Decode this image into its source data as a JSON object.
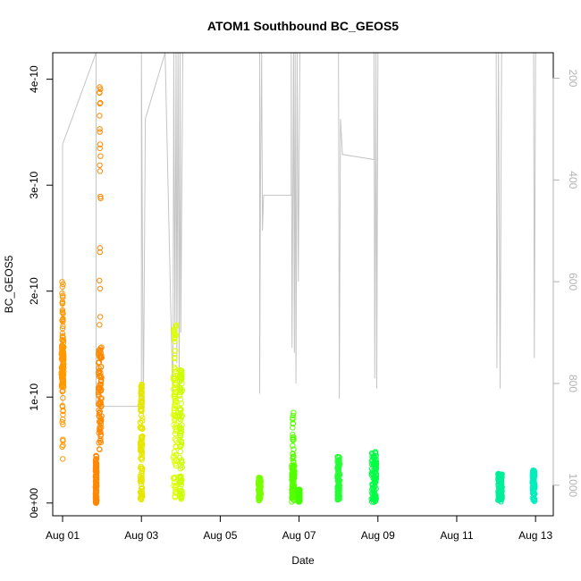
{
  "chart_data": {
    "type": "scatter",
    "title": "ATOM1 Southbound BC_GEOS5",
    "xlabel": "Date",
    "ylabel": "BC_GEOS5",
    "x_unit": "days",
    "xlim": [
      0.75,
      13.45
    ],
    "ylim": [
      -1.2e-11,
      4.25e-10
    ],
    "x_ticks": [
      {
        "value": 1,
        "label": "Aug 01"
      },
      {
        "value": 3,
        "label": "Aug 03"
      },
      {
        "value": 5,
        "label": "Aug 05"
      },
      {
        "value": 7,
        "label": "Aug 07"
      },
      {
        "value": 9,
        "label": "Aug 09"
      },
      {
        "value": 11,
        "label": "Aug 11"
      },
      {
        "value": 13,
        "label": "Aug 13"
      }
    ],
    "y_ticks": [
      {
        "value": 0,
        "label": "0e+00"
      },
      {
        "value": 1e-10,
        "label": "1e-10"
      },
      {
        "value": 2e-10,
        "label": "2e-10"
      },
      {
        "value": 3e-10,
        "label": "3e-10"
      },
      {
        "value": 4e-10,
        "label": "4e-10"
      }
    ],
    "y2_ticks": [
      {
        "value": 200,
        "label": "200"
      },
      {
        "value": 400,
        "label": "400"
      },
      {
        "value": 600,
        "label": "600"
      },
      {
        "value": 800,
        "label": "800"
      },
      {
        "value": 1000,
        "label": "1000"
      }
    ],
    "y2lim": [
      1060,
      150
    ],
    "grid": false,
    "marker": "open-circle",
    "point_groups": [
      {
        "x": 1.0,
        "x_spread": 0.06,
        "y_min": 1.05e-10,
        "y_max": 1.58e-10,
        "sparse_to": 2.1e-10,
        "sparse_from": 4e-11,
        "color": "#ff9900"
      },
      {
        "x": 1.85,
        "x_spread": 0.03,
        "y_min": 1e-12,
        "y_max": 4.5e-11,
        "sparse_to": 0,
        "sparse_from": 0,
        "color": "#ff8800"
      },
      {
        "x": 1.95,
        "x_spread": 0.08,
        "y_min": 5e-11,
        "y_max": 1.48e-10,
        "sparse_to": 4.07e-10,
        "sparse_from": 5e-11,
        "color": "#ff8800"
      },
      {
        "x": 3.0,
        "x_spread": 0.06,
        "y_min": 3e-12,
        "y_max": 1.03e-10,
        "sparse_to": 1.12e-10,
        "sparse_from": 3e-12,
        "color": "#e6e600"
      },
      {
        "x": 3.85,
        "x_spread": 0.08,
        "y_min": 5e-12,
        "y_max": 1.73e-10,
        "sparse_to": 1.73e-10,
        "sparse_from": 5e-12,
        "color": "#ddff00"
      },
      {
        "x": 4.0,
        "x_spread": 0.07,
        "y_min": 1e-12,
        "y_max": 1.3e-10,
        "sparse_to": 1.3e-10,
        "sparse_from": 1e-12,
        "color": "#ccff00"
      },
      {
        "x": 6.0,
        "x_spread": 0.06,
        "y_min": 2e-12,
        "y_max": 2.4e-11,
        "sparse_to": 2.4e-11,
        "sparse_from": 2e-12,
        "color": "#77ff00"
      },
      {
        "x": 6.85,
        "x_spread": 0.07,
        "y_min": 1e-12,
        "y_max": 3.6e-11,
        "sparse_to": 9e-11,
        "sparse_from": 1e-12,
        "color": "#55ff00"
      },
      {
        "x": 7.0,
        "x_spread": 0.04,
        "y_min": 1e-12,
        "y_max": 1.3e-11,
        "sparse_to": 1.3e-11,
        "sparse_from": 1e-12,
        "color": "#44ff00"
      },
      {
        "x": 8.0,
        "x_spread": 0.06,
        "y_min": 3e-12,
        "y_max": 4.4e-11,
        "sparse_to": 4.4e-11,
        "sparse_from": 3e-12,
        "color": "#22ff33"
      },
      {
        "x": 8.9,
        "x_spread": 0.12,
        "y_min": 1e-12,
        "y_max": 4.9e-11,
        "sparse_to": 4.9e-11,
        "sparse_from": 1e-12,
        "color": "#00ff44"
      },
      {
        "x": 12.1,
        "x_spread": 0.1,
        "y_min": 1e-12,
        "y_max": 2.8e-11,
        "sparse_to": 2.8e-11,
        "sparse_from": 1e-12,
        "color": "#00ee99"
      },
      {
        "x": 12.95,
        "x_spread": 0.06,
        "y_min": 1e-12,
        "y_max": 3.1e-11,
        "sparse_to": 3.1e-11,
        "sparse_from": 1e-12,
        "color": "#00eebb"
      }
    ],
    "secondary_line": {
      "color": "#c4c4c4",
      "description": "altitude/pressure trace on right axis",
      "points": [
        [
          1.0,
          845
        ],
        [
          1.0,
          330
        ],
        [
          1.85,
          150
        ],
        [
          1.85,
          845
        ],
        [
          2.1,
          845
        ],
        [
          2.1,
          845
        ],
        [
          2.9,
          845
        ],
        [
          3.0,
          845
        ],
        [
          3.0,
          150
        ],
        [
          3.05,
          860
        ],
        [
          3.1,
          280
        ],
        [
          3.6,
          150
        ],
        [
          3.8,
          845
        ],
        [
          3.82,
          150
        ],
        [
          3.85,
          700
        ],
        [
          3.88,
          150
        ],
        [
          3.9,
          760
        ],
        [
          3.93,
          150
        ],
        [
          3.96,
          820
        ],
        [
          3.98,
          150
        ],
        [
          4.0,
          700
        ],
        [
          4.05,
          150
        ],
        [
          6.0,
          150
        ],
        [
          6.0,
          820
        ],
        [
          6.02,
          400
        ],
        [
          6.05,
          150
        ],
        [
          6.07,
          500
        ],
        [
          6.1,
          430
        ],
        [
          6.8,
          430
        ],
        [
          6.8,
          150
        ],
        [
          6.82,
          730
        ],
        [
          6.86,
          150
        ],
        [
          6.88,
          740
        ],
        [
          6.9,
          150
        ],
        [
          6.92,
          800
        ],
        [
          6.95,
          150
        ],
        [
          6.98,
          600
        ],
        [
          7.02,
          150
        ],
        [
          8.0,
          150
        ],
        [
          8.02,
          830
        ],
        [
          8.05,
          280
        ],
        [
          8.1,
          350
        ],
        [
          8.9,
          360
        ],
        [
          8.9,
          150
        ],
        [
          8.92,
          790
        ],
        [
          8.95,
          150
        ],
        [
          8.97,
          810
        ],
        [
          9.0,
          150
        ],
        [
          12.0,
          150
        ],
        [
          12.02,
          770
        ],
        [
          12.06,
          150
        ],
        [
          12.1,
          810
        ],
        [
          12.14,
          150
        ],
        [
          12.95,
          150
        ],
        [
          12.97,
          750
        ],
        [
          13.0,
          150
        ]
      ]
    }
  }
}
